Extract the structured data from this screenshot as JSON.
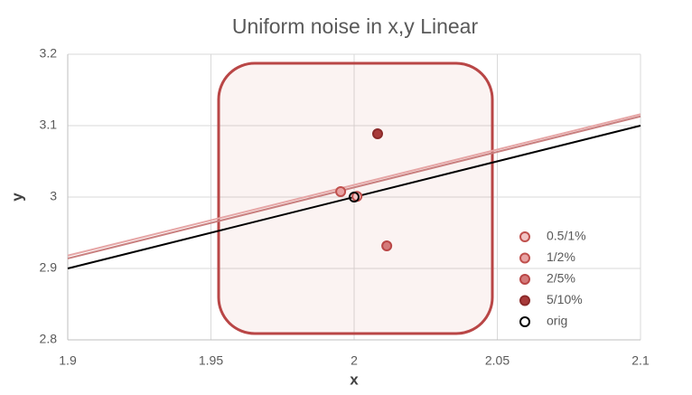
{
  "chart_data": {
    "type": "scatter",
    "title": "Uniform noise in x,y Linear",
    "x_label": "x",
    "y_label": "y",
    "xlim": [
      1.9,
      2.1
    ],
    "xticks": [
      1.9,
      1.95,
      2,
      2.05,
      2.1
    ],
    "ylim": [
      2.8,
      3.2
    ],
    "yticks": [
      2.8,
      2.9,
      3,
      3.1,
      3.2
    ],
    "grid": true,
    "legend": "right",
    "series": [
      {
        "name": "0.5/1%",
        "color": "#f2c4c4",
        "edge": "#c0504d",
        "x": [
          2.001
        ],
        "values": [
          3.001
        ]
      },
      {
        "name": "1/2%",
        "color": "#e8a3a3",
        "edge": "#c0504d",
        "x": [
          1.9953
        ],
        "values": [
          3.0076
        ]
      },
      {
        "name": "2/5%",
        "color": "#d47a7a",
        "edge": "#b94646",
        "x": [
          2.0114
        ],
        "values": [
          2.9316
        ]
      },
      {
        "name": "5/10%",
        "color": "#a83a3a",
        "edge": "#8b2a2a",
        "x": [
          2.0082
        ],
        "values": [
          3.0886
        ]
      },
      {
        "name": "orig",
        "color": "#ffffff",
        "edge": "#000000",
        "x": [
          2
        ],
        "values": [
          3
        ]
      }
    ],
    "trendlines": [
      {
        "color": "#e6a6a6",
        "x": [
          1.9,
          2.1
        ],
        "values": [
          2.918,
          3.116
        ]
      },
      {
        "color": "#c98080",
        "x": [
          1.9,
          2.1
        ],
        "values": [
          2.914,
          3.113
        ]
      },
      {
        "color": "#000000",
        "x": [
          1.9,
          2.1
        ],
        "values": [
          2.9,
          3.1
        ]
      }
    ]
  }
}
